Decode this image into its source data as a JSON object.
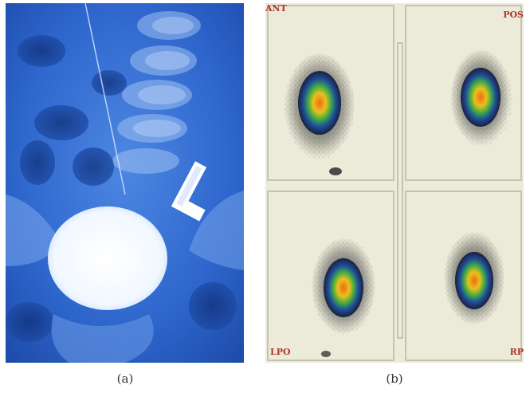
{
  "figure": {
    "panel_a": {
      "caption": "(a)",
      "icon": "xray-image"
    },
    "panel_b": {
      "caption": "(b)",
      "icon": "scintigraphy-image",
      "views": {
        "top_left": "ANT",
        "top_right": "POS",
        "bottom_left": "LPO",
        "bottom_right": "RP"
      }
    }
  },
  "colors": {
    "xray_background": "#2f6bd0",
    "xray_bright": "#f4f9ff",
    "scan_paper": "#ecebd9",
    "label_red": "#b0352e"
  }
}
